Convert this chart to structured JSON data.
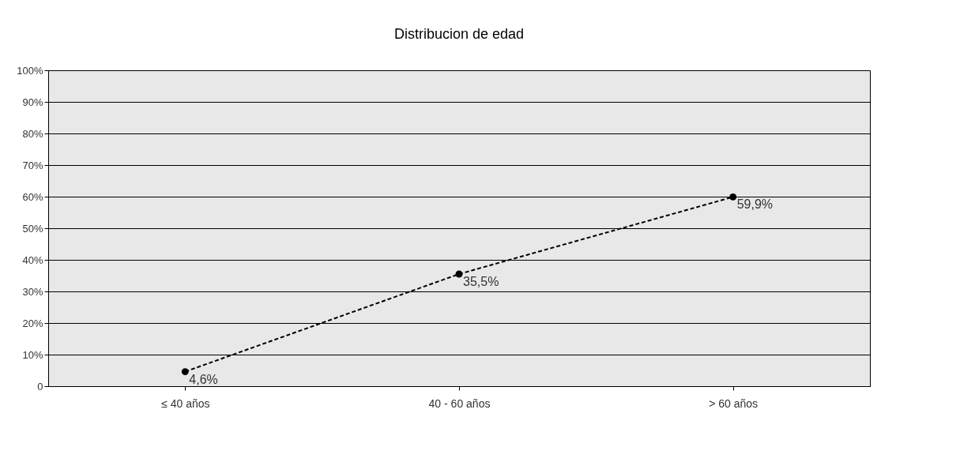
{
  "chart_data": {
    "type": "line",
    "title": "Distribucion de edad",
    "categories": [
      "≤ 40 años",
      "40 - 60 años",
      "> 60 años"
    ],
    "series": [
      {
        "color": "#000000",
        "values": [
          4.6,
          35.5,
          59.9
        ],
        "value_labels": [
          "4,6%",
          "35,5%",
          "59,9%"
        ]
      }
    ],
    "ylim": [
      0,
      100
    ],
    "yticks": [
      0,
      {
        "value": 10,
        "label": "10%"
      },
      {
        "value": 20,
        "label": "20%"
      },
      {
        "value": 30,
        "label": "30%"
      },
      {
        "value": 40,
        "label": "40%"
      },
      {
        "value": 50,
        "label": "50%"
      },
      {
        "value": 60,
        "label": "60%"
      },
      {
        "value": 70,
        "label": "70%"
      },
      {
        "value": 80,
        "label": "80%"
      },
      {
        "value": 90,
        "label": "90%"
      },
      {
        "value": 100,
        "label": "100%"
      }
    ],
    "grid": "y",
    "marker": "circle",
    "line_style": "dashed"
  }
}
